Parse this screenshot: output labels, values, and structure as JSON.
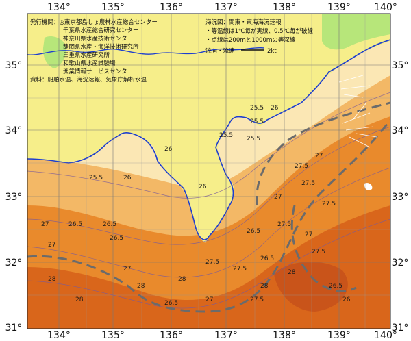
{
  "map": {
    "lon_labels": [
      "134°",
      "135°",
      "136°",
      "137°",
      "138°",
      "139°",
      "140°"
    ],
    "lat_labels": [
      "35°",
      "34°",
      "33°",
      "32°",
      "31°"
    ],
    "left_notes": [
      "発行機関：◎東京都島しょ農林水産総合センター",
      "千葉県水産総合研究センター",
      "神奈川県水産技術センター",
      "静岡県水産・海洋技術研究所",
      "三重県水産研究所",
      "和歌山県水産試験場",
      "漁業情報サービスセンター",
      "資料：船舶水温、海況速報、気象庁解析水温"
    ],
    "right_notes": [
      "海況図：関東・東海海況速報",
      "・等温線は1℃毎が実線、0.5℃毎が破線",
      "・点線は200ｍと1000ｍの等深線"
    ],
    "legend": {
      "label": "流向・流速",
      "scale": "2kt"
    },
    "isotherms": [
      "25.5",
      "25.5",
      "25.5",
      "26",
      "26",
      "26",
      "26",
      "25.5",
      "25.5",
      "26.5",
      "26.5",
      "26.5",
      "27",
      "27",
      "27",
      "27",
      "27.5",
      "27.5",
      "27.5",
      "28",
      "28",
      "28",
      "28",
      "27.5",
      "27.5",
      "26.5",
      "26.5",
      "26",
      "26.5",
      "27",
      "27.5",
      "28",
      "27.5",
      "27",
      "26.5",
      "27",
      "27.5",
      "28"
    ],
    "colors": {
      "land": "#f6ee8a",
      "land_green": "#b7e67a",
      "coast": "#1d3ecf",
      "sea_cool": "#fbe7b4",
      "sea_mid": "#f3b866",
      "sea_warm": "#e98a2c",
      "sea_hot": "#d9661b",
      "current": "#6b6b6b"
    }
  }
}
